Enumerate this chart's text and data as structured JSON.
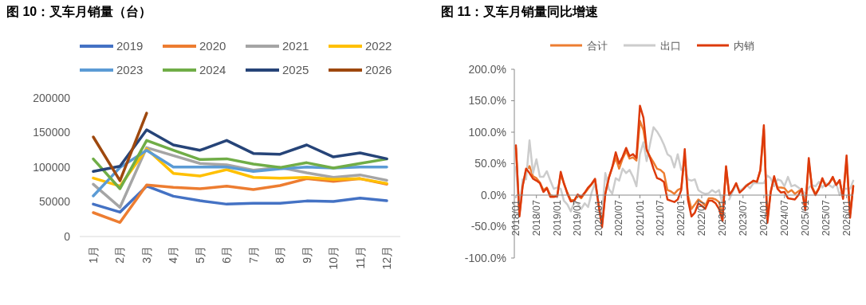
{
  "chart_data": [
    {
      "type": "line",
      "title": "图 10：叉车月销量（台）",
      "categories": [
        "1月",
        "2月",
        "3月",
        "4月",
        "5月",
        "6月",
        "7月",
        "8月",
        "9月",
        "10月",
        "11月",
        "12月"
      ],
      "ylim": [
        0,
        200000
      ],
      "yticks": [
        0,
        50000,
        100000,
        150000,
        200000
      ],
      "grid": false,
      "legend": "top",
      "marker": "none",
      "line_style": "solid",
      "series": [
        {
          "name": "2019",
          "color": "#4472c4",
          "values": [
            46700,
            35200,
            72800,
            58200,
            51700,
            46700,
            47900,
            47900,
            51300,
            50600,
            55500,
            51700
          ]
        },
        {
          "name": "2020",
          "color": "#ed7d31",
          "values": [
            34500,
            20300,
            74300,
            70900,
            69000,
            72800,
            67800,
            73600,
            83500,
            79700,
            83500,
            75500
          ]
        },
        {
          "name": "2021",
          "color": "#a5a5a5",
          "values": [
            75500,
            42100,
            128300,
            116800,
            105400,
            103400,
            95800,
            99600,
            91900,
            85400,
            88900,
            81200
          ]
        },
        {
          "name": "2022",
          "color": "#ffc000",
          "values": [
            84300,
            72800,
            126400,
            91200,
            87300,
            96500,
            85400,
            84300,
            85400,
            82400,
            83500,
            76600
          ]
        },
        {
          "name": "2023",
          "color": "#5b9bd5",
          "values": [
            58600,
            99600,
            124500,
            100400,
            100400,
            100400,
            93900,
            97700,
            100400,
            98800,
            100400,
            100400
          ]
        },
        {
          "name": "2024",
          "color": "#70ad47",
          "values": [
            111900,
            69000,
            138700,
            124500,
            111100,
            112200,
            104600,
            99600,
            106500,
            98800,
            105400,
            111900
          ]
        },
        {
          "name": "2025",
          "color": "#264478",
          "values": [
            93900,
            101500,
            154000,
            132200,
            124500,
            138700,
            119900,
            118800,
            132200,
            114900,
            120700,
            112200
          ]
        },
        {
          "name": "2026",
          "color": "#9e480e",
          "values": [
            143700,
            80500,
            178100,
            null,
            null,
            null,
            null,
            null,
            null,
            null,
            null,
            null
          ]
        }
      ]
    },
    {
      "type": "line",
      "title": "图 11：叉车月销量同比增速",
      "xlim": [
        "2018-01",
        "2026-03"
      ],
      "ylim": [
        -100,
        200
      ],
      "yticks": [
        {
          "value": -100,
          "label": "-100.0%"
        },
        {
          "value": -50,
          "label": "-50.0%"
        },
        {
          "value": 0,
          "label": "0.0%"
        },
        {
          "value": 50,
          "label": "50.0%"
        },
        {
          "value": 100,
          "label": "100.0%"
        },
        {
          "value": 150,
          "label": "150.0%"
        },
        {
          "value": 200,
          "label": "200.0%"
        }
      ],
      "xticks": [
        {
          "value": "2018-01",
          "label": "2018/01"
        },
        {
          "value": "2018-07",
          "label": "2018/07"
        },
        {
          "value": "2019-01",
          "label": "2019/01"
        },
        {
          "value": "2019-07",
          "label": "2019/07"
        },
        {
          "value": "2020-01",
          "label": "2020/01"
        },
        {
          "value": "2020-07",
          "label": "2020/07"
        },
        {
          "value": "2021-01",
          "label": "2021/01"
        },
        {
          "value": "2021-07",
          "label": "2021/07"
        },
        {
          "value": "2022-01",
          "label": "2022/01"
        },
        {
          "value": "2022-07",
          "label": "2022/07"
        },
        {
          "value": "2023-01",
          "label": "2023/01"
        },
        {
          "value": "2023-07",
          "label": "2023/07"
        },
        {
          "value": "2024-01",
          "label": "2024/01"
        },
        {
          "value": "2024-07",
          "label": "2024/07"
        },
        {
          "value": "2025-01",
          "label": "2025/01"
        },
        {
          "value": "2025-07",
          "label": "2025/07"
        },
        {
          "value": "2026-01",
          "label": "2026/01"
        }
      ],
      "grid": false,
      "legend": "top",
      "marker": "none",
      "line_style": "solid",
      "x": [
        "2018-01",
        "2018-02",
        "2018-03",
        "2018-04",
        "2018-05",
        "2018-06",
        "2018-07",
        "2018-08",
        "2018-09",
        "2018-10",
        "2018-11",
        "2018-12",
        "2019-01",
        "2019-02",
        "2019-03",
        "2019-04",
        "2019-05",
        "2019-06",
        "2019-07",
        "2019-08",
        "2019-09",
        "2019-10",
        "2019-11",
        "2019-12",
        "2020-01",
        "2020-02",
        "2020-03",
        "2020-04",
        "2020-05",
        "2020-06",
        "2020-07",
        "2020-08",
        "2020-09",
        "2020-10",
        "2020-11",
        "2020-12",
        "2021-01",
        "2021-02",
        "2021-03",
        "2021-04",
        "2021-05",
        "2021-06",
        "2021-07",
        "2021-08",
        "2021-09",
        "2021-10",
        "2021-11",
        "2021-12",
        "2022-01",
        "2022-02",
        "2022-03",
        "2022-04",
        "2022-05",
        "2022-06",
        "2022-07",
        "2022-08",
        "2022-09",
        "2022-10",
        "2022-11",
        "2022-12",
        "2023-01",
        "2023-02",
        "2023-03",
        "2023-04",
        "2023-05",
        "2023-06",
        "2023-07",
        "2023-08",
        "2023-09",
        "2023-10",
        "2023-11",
        "2023-12",
        "2024-01",
        "2024-02",
        "2024-03",
        "2024-04",
        "2024-05",
        "2024-06",
        "2024-07",
        "2024-08",
        "2024-09",
        "2024-10",
        "2024-11",
        "2024-12",
        "2025-01",
        "2025-02",
        "2025-03",
        "2025-04",
        "2025-05",
        "2025-06",
        "2025-07",
        "2025-08",
        "2025-09",
        "2025-10",
        "2025-11",
        "2025-12",
        "2026-01",
        "2026-02",
        "2026-03"
      ],
      "series": [
        {
          "name": "合计",
          "color": "#ed7d31",
          "values": [
            75,
            -30,
            15,
            40,
            46,
            30,
            27,
            20,
            8,
            12,
            0,
            -2,
            -1,
            33,
            18,
            4,
            -8,
            -8,
            0,
            -5,
            3,
            10,
            17,
            24,
            -14,
            -46,
            3,
            28,
            44,
            59,
            42,
            58,
            70,
            58,
            60,
            55,
            118,
            103,
            71,
            61,
            52,
            42,
            40,
            35,
            8,
            6,
            2,
            8,
            11,
            60,
            0,
            -22,
            -15,
            -7,
            -11,
            -17,
            -5,
            -5,
            -7,
            -11,
            -32,
            44,
            0,
            8,
            18,
            5,
            10,
            16,
            19,
            22,
            21,
            38,
            105,
            -40,
            5,
            28,
            12,
            12,
            11,
            4,
            8,
            2,
            6,
            10,
            -20,
            52,
            14,
            2,
            11,
            25,
            15,
            19,
            27,
            17,
            22,
            -3,
            55,
            -30,
            15
          ]
        },
        {
          "name": "出口",
          "color": "#cccccc",
          "values": [
            45,
            -25,
            25,
            25,
            87,
            35,
            57,
            29,
            29,
            38,
            23,
            10,
            12,
            10,
            -9,
            -15,
            -26,
            -11,
            -13,
            -22,
            -13,
            -19,
            4,
            19,
            -15,
            -30,
            35,
            10,
            2,
            27,
            23,
            42,
            35,
            40,
            29,
            14,
            65,
            84,
            54,
            82,
            108,
            101,
            92,
            80,
            65,
            61,
            44,
            65,
            40,
            44,
            25,
            23,
            25,
            8,
            4,
            2,
            3,
            8,
            4,
            8,
            -15,
            null,
            -7,
            6,
            16,
            8,
            10,
            16,
            11,
            19,
            19,
            19,
            19,
            31,
            27,
            14,
            25,
            23,
            14,
            29,
            14,
            16,
            12,
            8,
            2,
            12,
            16,
            14,
            21,
            12,
            19,
            16,
            12,
            19,
            0,
            10,
            10,
            10,
            23
          ]
        },
        {
          "name": "内销",
          "color": "#dd3a0b",
          "values": [
            79,
            -34,
            14,
            42,
            35,
            26,
            23,
            19,
            5,
            11,
            -3,
            -3,
            -2,
            37,
            19,
            2,
            -10,
            -9,
            1,
            -3,
            4,
            12,
            18,
            26,
            -15,
            -51,
            2,
            27,
            44,
            68,
            50,
            61,
            75,
            62,
            65,
            59,
            142,
            123,
            73,
            59,
            42,
            27,
            25,
            21,
            -7,
            -9,
            -11,
            -7,
            8,
            73,
            -7,
            -34,
            -28,
            -13,
            -17,
            -22,
            -9,
            -9,
            -13,
            -22,
            -41,
            46,
            0,
            8,
            19,
            4,
            9,
            15,
            19,
            23,
            21,
            40,
            111,
            -44,
            4,
            30,
            10,
            4,
            5,
            -5,
            -6,
            -7,
            0,
            10,
            -24,
            59,
            12,
            0,
            10,
            27,
            14,
            19,
            29,
            16,
            24,
            -6,
            63,
            -36,
            14
          ]
        }
      ]
    }
  ]
}
